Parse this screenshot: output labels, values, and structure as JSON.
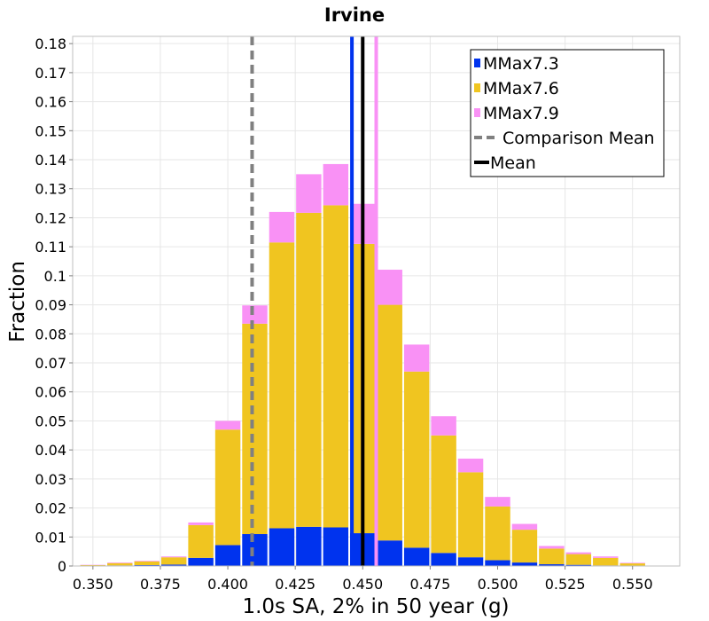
{
  "chart_data": {
    "type": "bar",
    "stacked": true,
    "title": "Irvine",
    "xlabel": "1.0s SA, 2% in 50 year (g)",
    "ylabel": "Fraction",
    "xlim": [
      0.3425,
      0.5675
    ],
    "ylim": [
      0,
      0.1825
    ],
    "xticks": [
      "0.350",
      "0.375",
      "0.400",
      "0.425",
      "0.450",
      "0.475",
      "0.500",
      "0.525",
      "0.550"
    ],
    "yticks": [
      "0",
      "0.01",
      "0.02",
      "0.03",
      "0.04",
      "0.05",
      "0.06",
      "0.07",
      "0.08",
      "0.09",
      "0.1",
      "0.11",
      "0.12",
      "0.13",
      "0.14",
      "0.15",
      "0.16",
      "0.17",
      "0.18"
    ],
    "bin_centers": [
      0.35,
      0.36,
      0.37,
      0.38,
      0.39,
      0.4,
      0.41,
      0.42,
      0.43,
      0.44,
      0.45,
      0.46,
      0.47,
      0.48,
      0.49,
      0.5,
      0.51,
      0.52,
      0.53,
      0.54,
      0.55,
      0.56
    ],
    "bin_width": 0.01,
    "series": [
      {
        "name": "MMax7.3",
        "color": "#0033ee",
        "values": [
          0.0001,
          0.0002,
          0.0003,
          0.0005,
          0.0028,
          0.0072,
          0.011,
          0.013,
          0.0135,
          0.0133,
          0.0113,
          0.0088,
          0.0063,
          0.0045,
          0.003,
          0.002,
          0.0012,
          0.0006,
          0.0004,
          0.0002,
          0.0001,
          0.0
        ]
      },
      {
        "name": "MMax7.6",
        "color": "#f0c520",
        "values": [
          0.0002,
          0.0008,
          0.0013,
          0.0025,
          0.0113,
          0.0398,
          0.0725,
          0.0985,
          0.1082,
          0.111,
          0.0997,
          0.0812,
          0.0607,
          0.0405,
          0.0293,
          0.0185,
          0.0113,
          0.0054,
          0.0037,
          0.0026,
          0.0008,
          0.0
        ]
      },
      {
        "name": "MMax7.9",
        "color": "#f991f5",
        "values": [
          0.0001,
          0.0002,
          0.0002,
          0.0003,
          0.0009,
          0.003,
          0.0063,
          0.0105,
          0.0133,
          0.0142,
          0.0138,
          0.0121,
          0.0093,
          0.0066,
          0.0047,
          0.0033,
          0.002,
          0.0009,
          0.0006,
          0.0005,
          0.0002,
          0.0001
        ]
      }
    ],
    "reference_lines": [
      {
        "name": "Comparison Mean",
        "x": 0.409,
        "color": "#808080",
        "style": "dashed"
      },
      {
        "name": "Mean",
        "x": 0.45,
        "color": "#000000",
        "style": "solid"
      },
      {
        "name": "MMax7.3 mean",
        "x": 0.446,
        "color": "#0033ee",
        "style": "solid"
      },
      {
        "name": "MMax7.9 mean",
        "x": 0.455,
        "color": "#f991f5",
        "style": "solid"
      }
    ],
    "legend": {
      "position": "top-right",
      "entries": [
        {
          "label": "MMax7.3",
          "color": "#0033ee",
          "kind": "bar"
        },
        {
          "label": "MMax7.6",
          "color": "#f0c520",
          "kind": "bar"
        },
        {
          "label": "MMax7.9",
          "color": "#f991f5",
          "kind": "bar"
        },
        {
          "label": "Comparison Mean",
          "color": "#808080",
          "kind": "dashed"
        },
        {
          "label": "Mean",
          "color": "#000000",
          "kind": "line"
        }
      ]
    }
  }
}
